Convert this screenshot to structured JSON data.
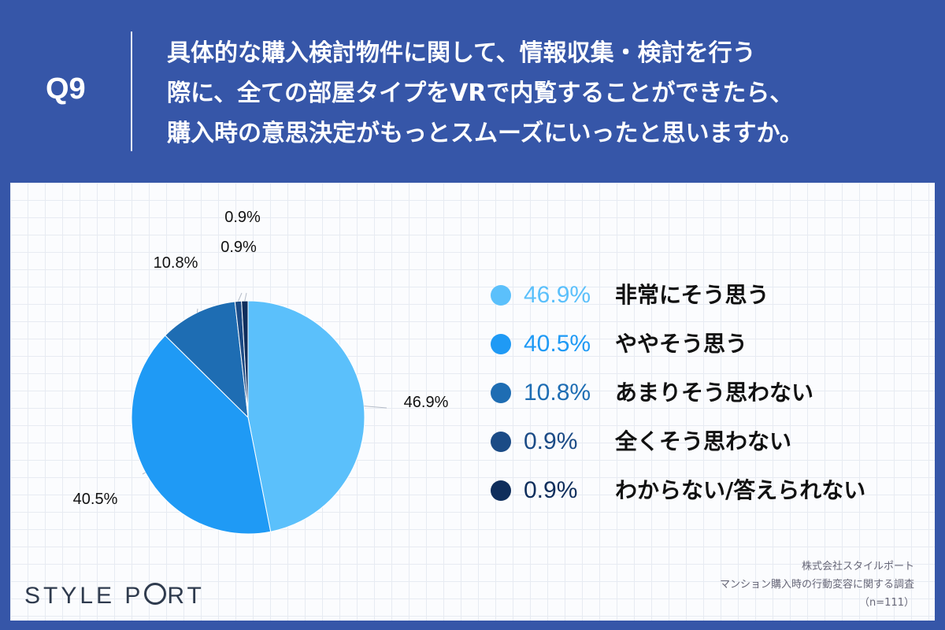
{
  "header": {
    "q_label": "Q9",
    "question_lines": [
      "具体的な購入検討物件に関して、情報収集・検討を行う",
      "際に、全ての部屋タイプをVRで内覧することができたら、",
      "購入時の意思決定がもっとスムーズにいったと思いますか。"
    ]
  },
  "chart_data": {
    "type": "pie",
    "slices": [
      {
        "label": "非常にそう思う",
        "value": 46.9,
        "display": "46.9%",
        "color": "#5bc0fb"
      },
      {
        "label": "ややそう思う",
        "value": 40.5,
        "display": "40.5%",
        "color": "#1f9af5"
      },
      {
        "label": "あまりそう思わない",
        "value": 10.8,
        "display": "10.8%",
        "color": "#1e6db3"
      },
      {
        "label": "全くそう思わない",
        "value": 0.9,
        "display": "0.9%",
        "color": "#1b4b86"
      },
      {
        "label": "わからない/答えられない",
        "value": 0.9,
        "display": "0.9%",
        "color": "#0f2e5c"
      }
    ],
    "legend_placement": "right"
  },
  "legend_colors": {
    "text_1": "#5bc0fb",
    "text_2": "#1f9af5",
    "text_3": "#1e6db3",
    "text_4": "#1b4b86",
    "text_5": "#0f2e5c"
  },
  "footer": {
    "logo": "STYLE PORT",
    "source_lines": [
      "株式会社スタイルポート",
      "マンション購入時の行動変容に関する調査",
      "（n=111）"
    ]
  }
}
